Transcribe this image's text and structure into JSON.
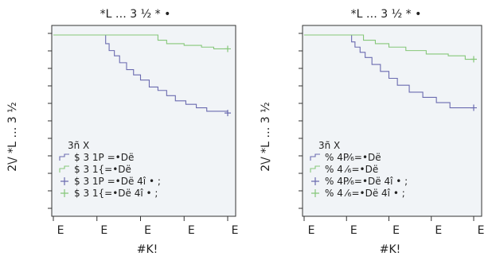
{
  "chart_data": [
    {
      "type": "line",
      "title": "*L … 3 ½ * •",
      "xlabel": "#K!",
      "ylabel": "2\\/ *L … 3 ½",
      "xlim": [
        0,
        100
      ],
      "ylim": [
        0,
        1
      ],
      "grid": false,
      "legend_position": "bottom-left",
      "x_tick_labels": [
        "E",
        "E",
        "E",
        "E",
        "E"
      ],
      "legend_title": "3ñ X",
      "series": [
        {
          "name": "$ 3 1P =•Dë",
          "color": "#6b6bb0",
          "x": [
            0,
            28,
            30,
            32,
            35,
            38,
            42,
            46,
            50,
            55,
            60,
            65,
            70,
            76,
            82,
            88,
            100
          ],
          "y": [
            1.0,
            1.0,
            0.95,
            0.91,
            0.88,
            0.84,
            0.8,
            0.77,
            0.74,
            0.7,
            0.68,
            0.65,
            0.62,
            0.6,
            0.58,
            0.56,
            0.55
          ]
        },
        {
          "name": "$ 3 1{=•Dë",
          "color": "#86c77a",
          "x": [
            0,
            55,
            60,
            65,
            75,
            85,
            92,
            100
          ],
          "y": [
            1.0,
            1.0,
            0.97,
            0.95,
            0.94,
            0.93,
            0.92,
            0.92
          ]
        },
        {
          "name": "$ 3 1P =•Dë 4î • ;",
          "color": "#6b6bb0",
          "marker": "+",
          "x": [],
          "y": []
        },
        {
          "name": "$ 3 1{=•Dë  4î • ;",
          "color": "#86c77a",
          "marker": "+",
          "x": [],
          "y": []
        }
      ]
    },
    {
      "type": "line",
      "title": "*L … 3 ½ * •",
      "xlabel": "#K!",
      "ylabel": "2\\/ *L … 3 ½",
      "xlim": [
        0,
        100
      ],
      "ylim": [
        0,
        1
      ],
      "grid": false,
      "legend_position": "bottom-left",
      "x_tick_labels": [
        "E",
        "E",
        "E",
        "E",
        "E"
      ],
      "legend_title": "3ñ X",
      "series": [
        {
          "name": "% 4P⁄₆=•Dë",
          "color": "#6b6bb0",
          "x": [
            0,
            26,
            28,
            30,
            33,
            36,
            40,
            45,
            50,
            55,
            62,
            70,
            78,
            86,
            100
          ],
          "y": [
            1.0,
            1.0,
            0.96,
            0.93,
            0.9,
            0.87,
            0.83,
            0.79,
            0.75,
            0.71,
            0.67,
            0.64,
            0.61,
            0.58,
            0.58
          ]
        },
        {
          "name": "% 4 ⁄₆=•Dë",
          "color": "#86c77a",
          "x": [
            0,
            30,
            35,
            42,
            50,
            60,
            72,
            85,
            95,
            100
          ],
          "y": [
            1.0,
            1.0,
            0.97,
            0.95,
            0.93,
            0.91,
            0.89,
            0.88,
            0.86,
            0.86
          ]
        },
        {
          "name": "% 4P⁄₆=•Dë 4î • ;",
          "color": "#6b6bb0",
          "marker": "+",
          "x": [],
          "y": []
        },
        {
          "name": "% 4 ⁄₆=•Dë  4î • ;",
          "color": "#86c77a",
          "marker": "+",
          "x": [],
          "y": []
        }
      ]
    }
  ]
}
